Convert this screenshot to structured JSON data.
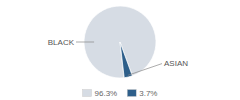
{
  "chart_data": {
    "type": "pie",
    "categories": [
      "BLACK",
      "ASIAN"
    ],
    "values": [
      96.3,
      3.7
    ],
    "value_labels": [
      "96.3%",
      "3.7%"
    ],
    "colors": [
      "#d6dce4",
      "#2e5f8a"
    ],
    "legend": "bottom"
  }
}
